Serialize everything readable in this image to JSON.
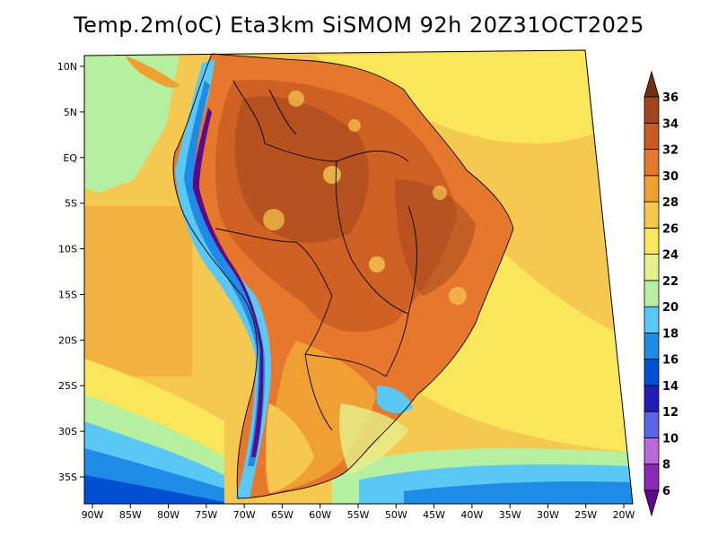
{
  "title": "Temp.2m(oC) Eta3km SiSMOM 92h 20Z31OCT2025",
  "map": {
    "lat_labels": [
      {
        "value": 10,
        "text": "10N"
      },
      {
        "value": 5,
        "text": "5N"
      },
      {
        "value": 0,
        "text": "EQ"
      },
      {
        "value": -5,
        "text": "5S"
      },
      {
        "value": -10,
        "text": "10S"
      },
      {
        "value": -15,
        "text": "15S"
      },
      {
        "value": -20,
        "text": "20S"
      },
      {
        "value": -25,
        "text": "25S"
      },
      {
        "value": -30,
        "text": "30S"
      },
      {
        "value": -35,
        "text": "35S"
      }
    ],
    "lon_labels": [
      {
        "value": -90,
        "text": "90W"
      },
      {
        "value": -85,
        "text": "85W"
      },
      {
        "value": -80,
        "text": "80W"
      },
      {
        "value": -75,
        "text": "75W"
      },
      {
        "value": -70,
        "text": "70W"
      },
      {
        "value": -65,
        "text": "65W"
      },
      {
        "value": -60,
        "text": "60W"
      },
      {
        "value": -55,
        "text": "55W"
      },
      {
        "value": -50,
        "text": "50W"
      },
      {
        "value": -45,
        "text": "45W"
      },
      {
        "value": -40,
        "text": "40W"
      },
      {
        "value": -35,
        "text": "35W"
      },
      {
        "value": -30,
        "text": "30W"
      },
      {
        "value": -25,
        "text": "25W"
      },
      {
        "value": -20,
        "text": "20W"
      }
    ]
  },
  "colorbar": {
    "labels": [
      "6",
      "8",
      "10",
      "12",
      "14",
      "16",
      "18",
      "20",
      "22",
      "24",
      "26",
      "28",
      "30",
      "32",
      "34",
      "36"
    ],
    "colors": [
      "#5a0a8a",
      "#8a28b8",
      "#b86ad8",
      "#5a64e6",
      "#1e1eb4",
      "#0050d2",
      "#1e8ce6",
      "#5ac8f5",
      "#b4f0a0",
      "#e6f08c",
      "#fae65a",
      "#f5c850",
      "#f0a032",
      "#e6782d",
      "#c85a23",
      "#a0461e",
      "#6e3214"
    ]
  }
}
